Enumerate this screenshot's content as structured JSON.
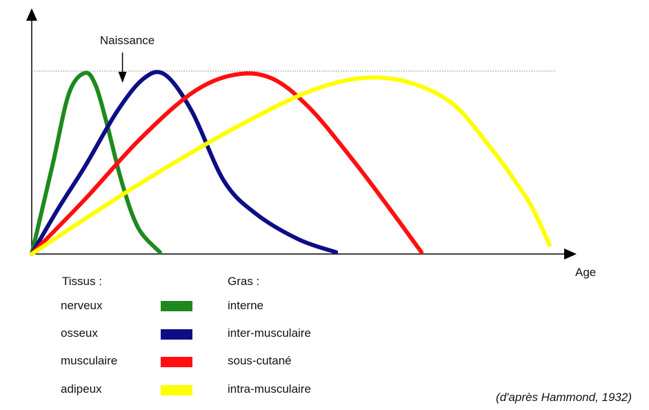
{
  "chart_data": {
    "type": "line",
    "title": "",
    "xlabel": "Age",
    "ylabel": "",
    "xlim": [
      0,
      100
    ],
    "ylim": [
      0,
      100
    ],
    "annotation": {
      "text": "Naissance",
      "x": 17
    },
    "reference_line": {
      "y": 100,
      "style": "dotted"
    },
    "series": [
      {
        "name": "nerveux",
        "color": "#1e8a1e",
        "points": [
          [
            0,
            0
          ],
          [
            4,
            50
          ],
          [
            7,
            88
          ],
          [
            10,
            99
          ],
          [
            12,
            92
          ],
          [
            14,
            72
          ],
          [
            17,
            38
          ],
          [
            20,
            14
          ],
          [
            24,
            1
          ]
        ]
      },
      {
        "name": "osseux",
        "color": "#0d0d86",
        "points": [
          [
            0,
            0
          ],
          [
            5,
            25
          ],
          [
            10,
            48
          ],
          [
            16,
            78
          ],
          [
            21,
            96
          ],
          [
            25,
            98
          ],
          [
            30,
            78
          ],
          [
            36,
            40
          ],
          [
            42,
            22
          ],
          [
            50,
            8
          ],
          [
            57,
            1
          ]
        ]
      },
      {
        "name": "musculaire",
        "color": "#ff0f0f",
        "points": [
          [
            0,
            0
          ],
          [
            10,
            30
          ],
          [
            20,
            62
          ],
          [
            30,
            88
          ],
          [
            38,
            98
          ],
          [
            45,
            96
          ],
          [
            52,
            80
          ],
          [
            60,
            52
          ],
          [
            67,
            25
          ],
          [
            73,
            1
          ]
        ]
      },
      {
        "name": "adipeux",
        "color": "#ffff00",
        "points": [
          [
            0,
            0
          ],
          [
            20,
            38
          ],
          [
            40,
            72
          ],
          [
            55,
            92
          ],
          [
            67,
            96
          ],
          [
            78,
            84
          ],
          [
            86,
            58
          ],
          [
            91,
            38
          ],
          [
            94,
            24
          ],
          [
            97,
            5
          ]
        ]
      }
    ]
  },
  "legend": {
    "tissus_header": "Tissus :",
    "gras_header": "Gras :",
    "rows": [
      {
        "tissu": "nerveux",
        "gras": "interne",
        "color": "#1e8a1e"
      },
      {
        "tissu": "osseux",
        "gras": "inter-musculaire",
        "color": "#0d0d86"
      },
      {
        "tissu": "musculaire",
        "gras": "sous-cutané",
        "color": "#ff0f0f"
      },
      {
        "tissu": "adipeux",
        "gras": "intra-musculaire",
        "color": "#ffff00"
      }
    ]
  },
  "credit": "(d'après Hammond, 1932)"
}
